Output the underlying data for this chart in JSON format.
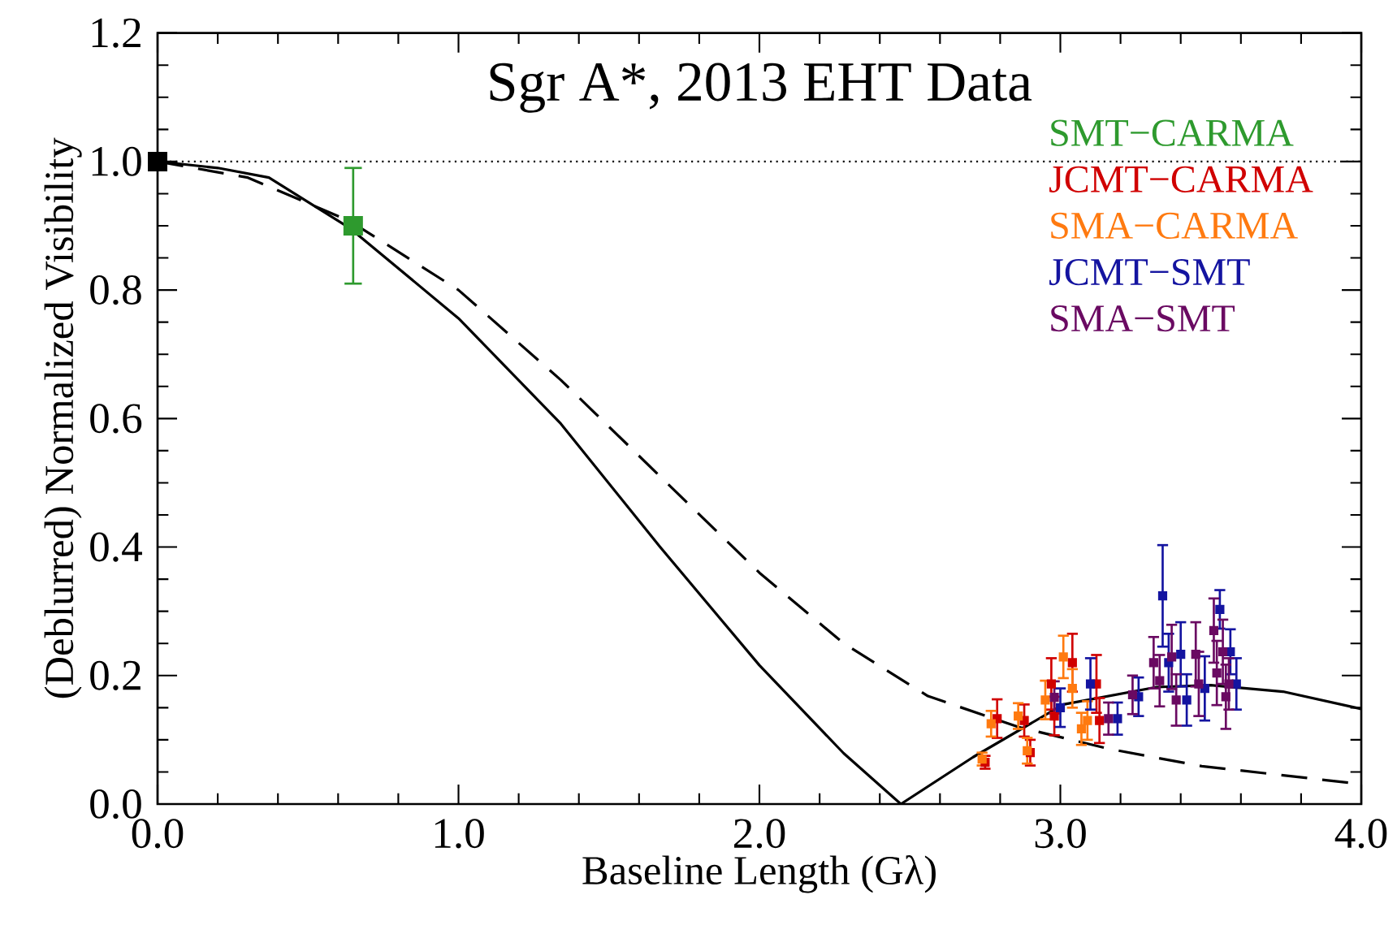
{
  "chart_data": {
    "type": "scatter",
    "title": "Sgr A*, 2013 EHT Data",
    "xlabel": "Baseline Length (Gλ)",
    "ylabel": "(Deblurred) Normalized Visibility",
    "xlim": [
      0,
      4
    ],
    "ylim": [
      0,
      1.2
    ],
    "xticks": [
      {
        "value": 0,
        "label": "0.0"
      },
      {
        "value": 1,
        "label": "1.0"
      },
      {
        "value": 2,
        "label": "2.0"
      },
      {
        "value": 3,
        "label": "3.0"
      },
      {
        "value": 4,
        "label": "4.0"
      }
    ],
    "yticks": [
      {
        "value": 0,
        "label": "0.0"
      },
      {
        "value": 0.2,
        "label": "0.2"
      },
      {
        "value": 0.4,
        "label": "0.4"
      },
      {
        "value": 0.6,
        "label": "0.6"
      },
      {
        "value": 0.8,
        "label": "0.8"
      },
      {
        "value": 1.0,
        "label": "1.0"
      },
      {
        "value": 1.2,
        "label": "1.2"
      }
    ],
    "grid": false,
    "legend": "top right",
    "marker": "square",
    "ref_lines": [
      {
        "axis": "y",
        "value": 1.0,
        "line_style": "dotted",
        "color": "#000000"
      }
    ],
    "series": [
      {
        "type": "line",
        "line_style": "solid",
        "marker": "none",
        "color": "#000000",
        "x": [
          0,
          0.2,
          0.37,
          0.64,
          1.0,
          1.34,
          1.67,
          2.0,
          2.28,
          2.47,
          2.71,
          3.01,
          3.32,
          3.5,
          3.74,
          4.0
        ],
        "values": [
          1.0,
          0.99,
          0.975,
          0.896,
          0.756,
          0.592,
          0.4,
          0.216,
          0.079,
          0,
          0.073,
          0.155,
          0.182,
          0.185,
          0.175,
          0.148
        ]
      },
      {
        "type": "line",
        "line_style": "dashed",
        "marker": "none",
        "color": "#000000",
        "x": [
          0,
          0.3,
          0.64,
          1.0,
          1.34,
          1.67,
          2.0,
          2.28,
          2.56,
          2.86,
          3.16,
          3.47,
          4.0
        ],
        "values": [
          1.0,
          0.975,
          0.907,
          0.8,
          0.66,
          0.51,
          0.36,
          0.25,
          0.168,
          0.12,
          0.086,
          0.059,
          0.031
        ]
      },
      {
        "color": "#000000",
        "x": [
          0
        ],
        "values": [
          1.0
        ]
      },
      {
        "name": "SMT−CARMA",
        "color": "#2e9a2e",
        "x": [
          0.65
        ],
        "values": [
          0.9
        ],
        "errors": [
          0.09
        ]
      },
      {
        "name": "JCMT−CARMA",
        "color": "#d00000",
        "x": [
          2.75,
          2.79,
          2.88,
          2.9,
          2.97,
          2.98,
          3.04,
          3.12,
          3.13
        ],
        "values": [
          0.065,
          0.133,
          0.13,
          0.08,
          0.187,
          0.137,
          0.22,
          0.187,
          0.13
        ],
        "errors": [
          0.01,
          0.03,
          0.025,
          0.02,
          0.04,
          0.03,
          0.045,
          0.045,
          0.035
        ]
      },
      {
        "name": "SMA−CARMA",
        "color": "#ff7a10",
        "x": [
          2.74,
          2.77,
          2.86,
          2.89,
          2.95,
          3.01,
          3.04,
          3.07,
          3.09
        ],
        "values": [
          0.07,
          0.125,
          0.137,
          0.083,
          0.162,
          0.229,
          0.18,
          0.117,
          0.13
        ],
        "errors": [
          0.01,
          0.02,
          0.02,
          0.02,
          0.03,
          0.033,
          0.03,
          0.025,
          0.03
        ]
      },
      {
        "name": "JCMT−SMT",
        "color": "#1414a0",
        "x": [
          3.0,
          3.1,
          3.19,
          3.26,
          3.34,
          3.36,
          3.4,
          3.42,
          3.48,
          3.53,
          3.565,
          3.585
        ],
        "values": [
          0.15,
          0.187,
          0.133,
          0.167,
          0.324,
          0.22,
          0.233,
          0.162,
          0.18,
          0.303,
          0.237,
          0.187
        ],
        "errors": [
          0.03,
          0.04,
          0.025,
          0.03,
          0.079,
          0.045,
          0.05,
          0.04,
          0.05,
          0.03,
          0.035,
          0.04
        ]
      },
      {
        "name": "SMA−SMT",
        "color": "#6a0a62",
        "x": [
          2.98,
          3.16,
          3.24,
          3.31,
          3.33,
          3.37,
          3.385,
          3.45,
          3.46,
          3.51,
          3.52,
          3.54,
          3.55,
          3.56
        ],
        "values": [
          0.166,
          0.133,
          0.17,
          0.22,
          0.192,
          0.229,
          0.162,
          0.233,
          0.187,
          0.27,
          0.204,
          0.237,
          0.167,
          0.187
        ],
        "errors": [
          0.025,
          0.025,
          0.03,
          0.04,
          0.04,
          0.05,
          0.04,
          0.05,
          0.05,
          0.05,
          0.05,
          0.05,
          0.05,
          0.04
        ]
      }
    ]
  }
}
